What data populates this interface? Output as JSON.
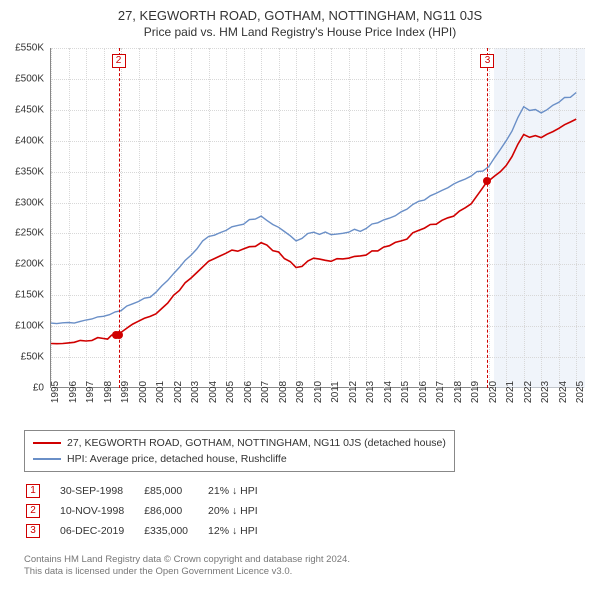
{
  "title1": "27, KEGWORTH ROAD, GOTHAM, NOTTINGHAM, NG11 0JS",
  "title2": "Price paid vs. HM Land Registry's House Price Index (HPI)",
  "chart": {
    "type": "line",
    "background_color": "#ffffff",
    "grid_color_dotted": "#d8d8d8",
    "shaded_region": {
      "x_start": 2020.3,
      "x_end": 2025.5,
      "color": "#e6edf7"
    },
    "xlim": [
      1995,
      2025.5
    ],
    "ylim": [
      0,
      550000
    ],
    "y_ticks": [
      0,
      50000,
      100000,
      150000,
      200000,
      250000,
      300000,
      350000,
      400000,
      450000,
      500000,
      550000
    ],
    "y_tick_labels": [
      "£0",
      "£50K",
      "£100K",
      "£150K",
      "£200K",
      "£250K",
      "£300K",
      "£350K",
      "£400K",
      "£450K",
      "£500K",
      "£550K"
    ],
    "x_ticks": [
      1995,
      1996,
      1997,
      1998,
      1999,
      2000,
      2001,
      2002,
      2003,
      2004,
      2005,
      2006,
      2007,
      2008,
      2009,
      2010,
      2011,
      2012,
      2013,
      2014,
      2015,
      2016,
      2017,
      2018,
      2019,
      2020,
      2021,
      2022,
      2023,
      2024,
      2025
    ],
    "series": [
      {
        "name": "27, KEGWORTH ROAD, GOTHAM, NOTTINGHAM, NG11 0JS (detached house)",
        "color": "#d00000",
        "line_width": 1.6,
        "x": [
          1995,
          1996,
          1997,
          1998,
          1998.7,
          1998.86,
          1999,
          2000,
          2001,
          2002,
          2003,
          2004,
          2005,
          2006,
          2007,
          2008,
          2009,
          2010,
          2011,
          2012,
          2013,
          2014,
          2015,
          2016,
          2017,
          2018,
          2019,
          2019.93,
          2020,
          2021,
          2022,
          2023,
          2024,
          2025
        ],
        "y": [
          72000,
          73000,
          76000,
          80000,
          85000,
          86000,
          90000,
          108000,
          120000,
          150000,
          178000,
          205000,
          218000,
          225000,
          235000,
          220000,
          195000,
          210000,
          205000,
          210000,
          215000,
          228000,
          238000,
          255000,
          265000,
          278000,
          298000,
          335000,
          335000,
          360000,
          410000,
          405000,
          420000,
          435000
        ]
      },
      {
        "name": "HPI: Average price, detached house, Rushcliffe",
        "color": "#6a8fc7",
        "line_width": 1.4,
        "x": [
          1995,
          1996,
          1997,
          1998,
          1999,
          2000,
          2001,
          2002,
          2003,
          2004,
          2005,
          2006,
          2007,
          2008,
          2009,
          2010,
          2011,
          2012,
          2013,
          2014,
          2015,
          2016,
          2017,
          2018,
          2019,
          2020,
          2021,
          2022,
          2023,
          2024,
          2025
        ],
        "y": [
          105000,
          106000,
          110000,
          116000,
          125000,
          140000,
          155000,
          185000,
          215000,
          245000,
          255000,
          265000,
          278000,
          260000,
          238000,
          252000,
          248000,
          252000,
          258000,
          272000,
          285000,
          302000,
          315000,
          330000,
          343000,
          358000,
          400000,
          455000,
          445000,
          462000,
          478000
        ]
      }
    ],
    "event_markers": [
      {
        "num": "2",
        "x": 1998.86,
        "dashed_color": "#d00000"
      },
      {
        "num": "3",
        "x": 2019.93,
        "dashed_color": "#d00000"
      }
    ],
    "data_dots": [
      {
        "x": 1998.7,
        "y": 85000,
        "color": "#d00000"
      },
      {
        "x": 1998.86,
        "y": 86000,
        "color": "#d00000"
      },
      {
        "x": 2019.93,
        "y": 335000,
        "color": "#d00000"
      }
    ]
  },
  "legend": {
    "items": [
      {
        "color": "#d00000",
        "label": "27, KEGWORTH ROAD, GOTHAM, NOTTINGHAM, NG11 0JS (detached house)"
      },
      {
        "color": "#6a8fc7",
        "label": "HPI: Average price, detached house, Rushcliffe"
      }
    ]
  },
  "events": [
    {
      "num": "1",
      "date": "30-SEP-1998",
      "price": "£85,000",
      "delta": "21% ↓ HPI"
    },
    {
      "num": "2",
      "date": "10-NOV-1998",
      "price": "£86,000",
      "delta": "20% ↓ HPI"
    },
    {
      "num": "3",
      "date": "06-DEC-2019",
      "price": "£335,000",
      "delta": "12% ↓ HPI"
    }
  ],
  "attribution": {
    "line1": "Contains HM Land Registry data © Crown copyright and database right 2024.",
    "line2": "This data is licensed under the Open Government Licence v3.0."
  }
}
